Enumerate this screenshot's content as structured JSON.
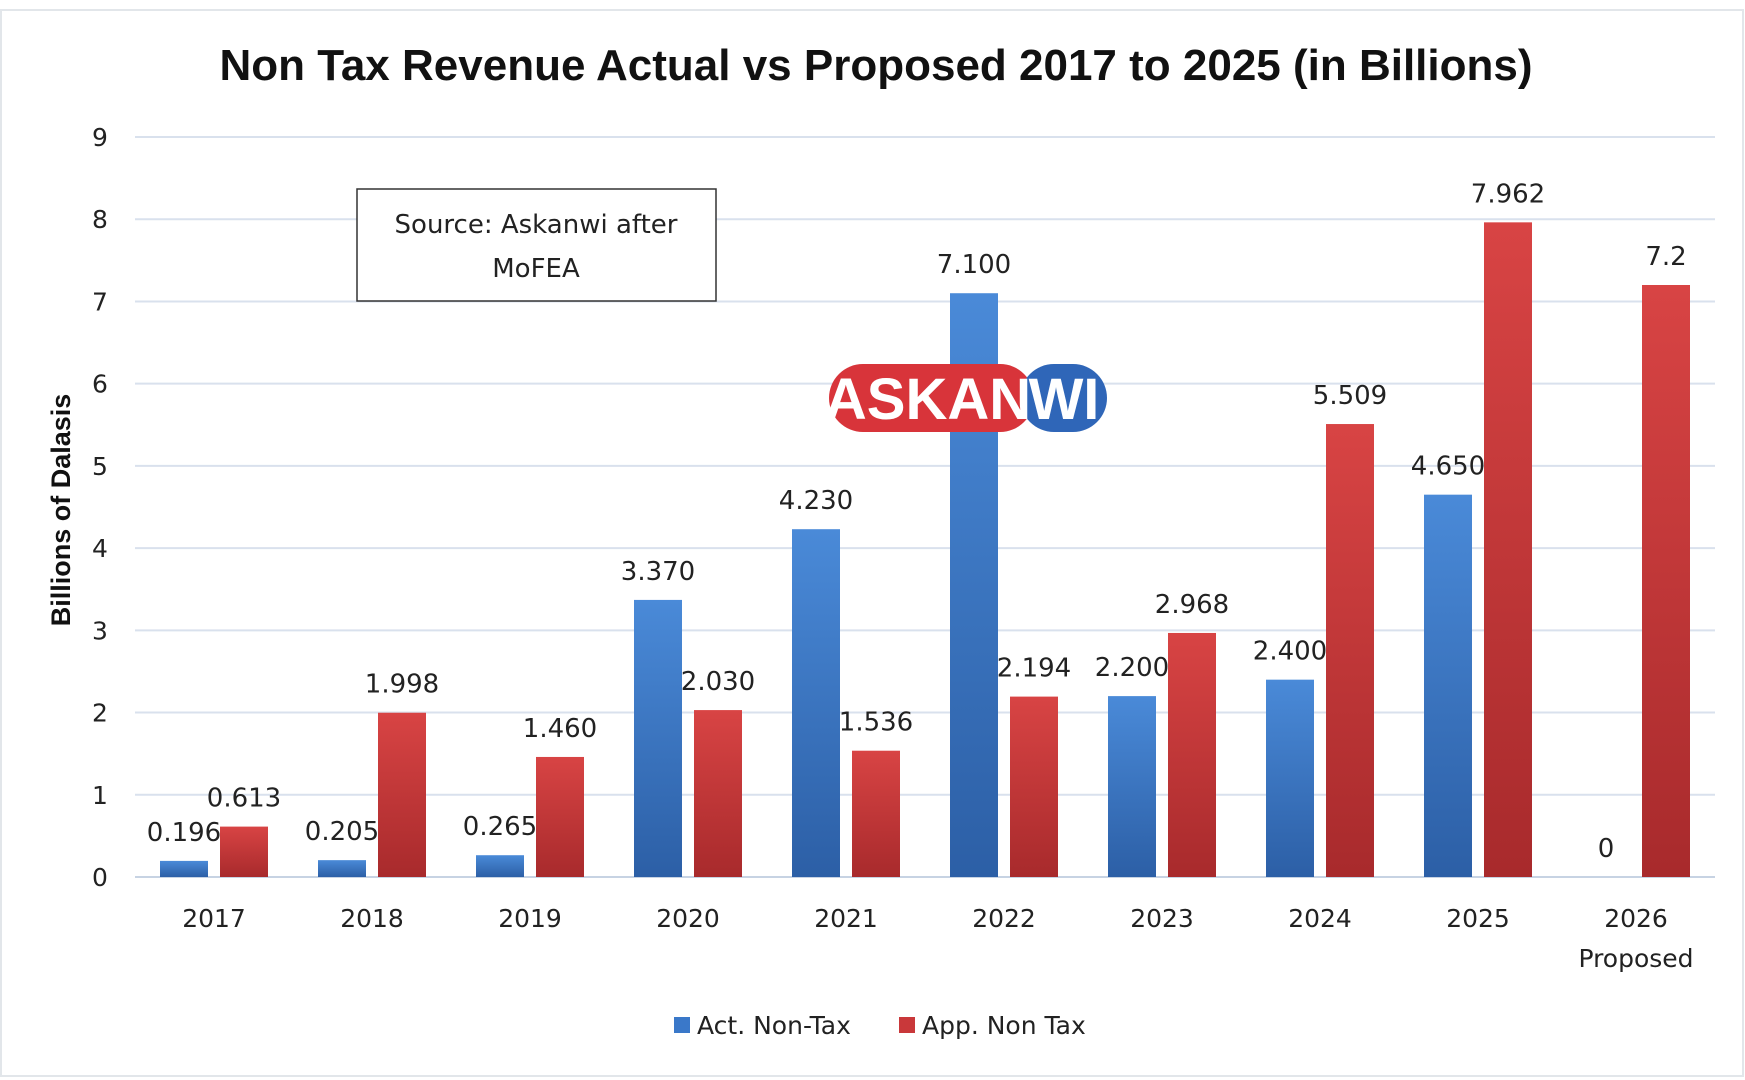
{
  "chart_data": {
    "type": "bar",
    "title": "Non Tax Revenue Actual vs Proposed 2017 to 2025 (in Billions)",
    "xlabel": "",
    "ylabel": "Billions of Dalasis",
    "ylim": [
      0,
      9
    ],
    "yticks": [
      "0",
      "1",
      "2",
      "3",
      "4",
      "5",
      "6",
      "7",
      "8",
      "9"
    ],
    "grid": true,
    "legend_position": "bottom",
    "categories": [
      "2017",
      "2018",
      "2019",
      "2020",
      "2021",
      "2022",
      "2023",
      "2024",
      "2025",
      "2026\nProposed"
    ],
    "series": [
      {
        "name": "Act. Non-Tax",
        "color": "#3a78c9",
        "values": [
          0.196,
          0.205,
          0.265,
          3.37,
          4.23,
          7.1,
          2.2,
          2.4,
          4.65,
          0
        ],
        "labels": [
          "0.196",
          "0.205",
          "0.265",
          "3.370",
          "4.230",
          "7.100",
          "2.200",
          "2.400",
          "4.650",
          "0"
        ]
      },
      {
        "name": "App. Non Tax",
        "color": "#c9383a",
        "values": [
          0.613,
          1.998,
          1.46,
          2.03,
          1.536,
          2.194,
          2.968,
          5.509,
          7.962,
          7.2
        ],
        "labels": [
          "0.613",
          "1.998",
          "1.460",
          "2.030",
          "1.536",
          "2.194",
          "2.968",
          "5.509",
          "7.962",
          "7.2"
        ]
      }
    ],
    "annotation": {
      "source_line1": "Source: Askanwi after",
      "source_line2": "MoFEA"
    },
    "watermark": {
      "part1": "ASKAN",
      "part2": "WI",
      "color1": "#d8343a",
      "color2": "#2f66b8"
    }
  }
}
